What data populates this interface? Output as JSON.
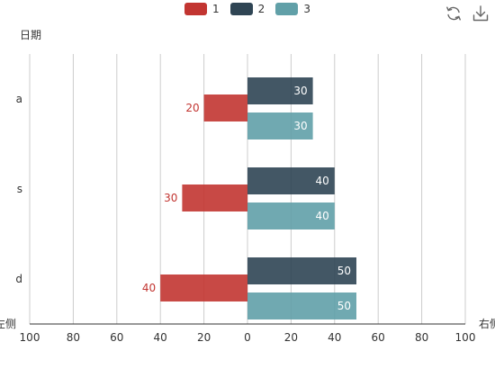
{
  "toolbox": {
    "refresh_icon": "refresh-icon",
    "download_icon": "download-icon"
  },
  "colors": {
    "s1": "#c23531",
    "s2": "#2f4554",
    "s3": "#61a0a8",
    "grid": "#cccccc",
    "axis": "#333333"
  },
  "chart_data": {
    "type": "bar",
    "orientation": "horizontal",
    "categories": [
      "a",
      "s",
      "d"
    ],
    "yaxis_name": "日期",
    "x_left_name": "左侧",
    "x_right_name": "右侧",
    "xlim": [
      -100,
      100
    ],
    "x_ticks": [
      100,
      80,
      60,
      40,
      20,
      0,
      20,
      40,
      60,
      80,
      100
    ],
    "grid": true,
    "legend_position": "top-center",
    "series": [
      {
        "name": "1",
        "values": [
          -20,
          -30,
          -40
        ],
        "labels": [
          "20",
          "30",
          "40"
        ]
      },
      {
        "name": "2",
        "values": [
          30,
          40,
          50
        ],
        "labels": [
          "30",
          "40",
          "50"
        ]
      },
      {
        "name": "3",
        "values": [
          30,
          40,
          50
        ],
        "labels": [
          "30",
          "40",
          "50"
        ]
      }
    ]
  }
}
